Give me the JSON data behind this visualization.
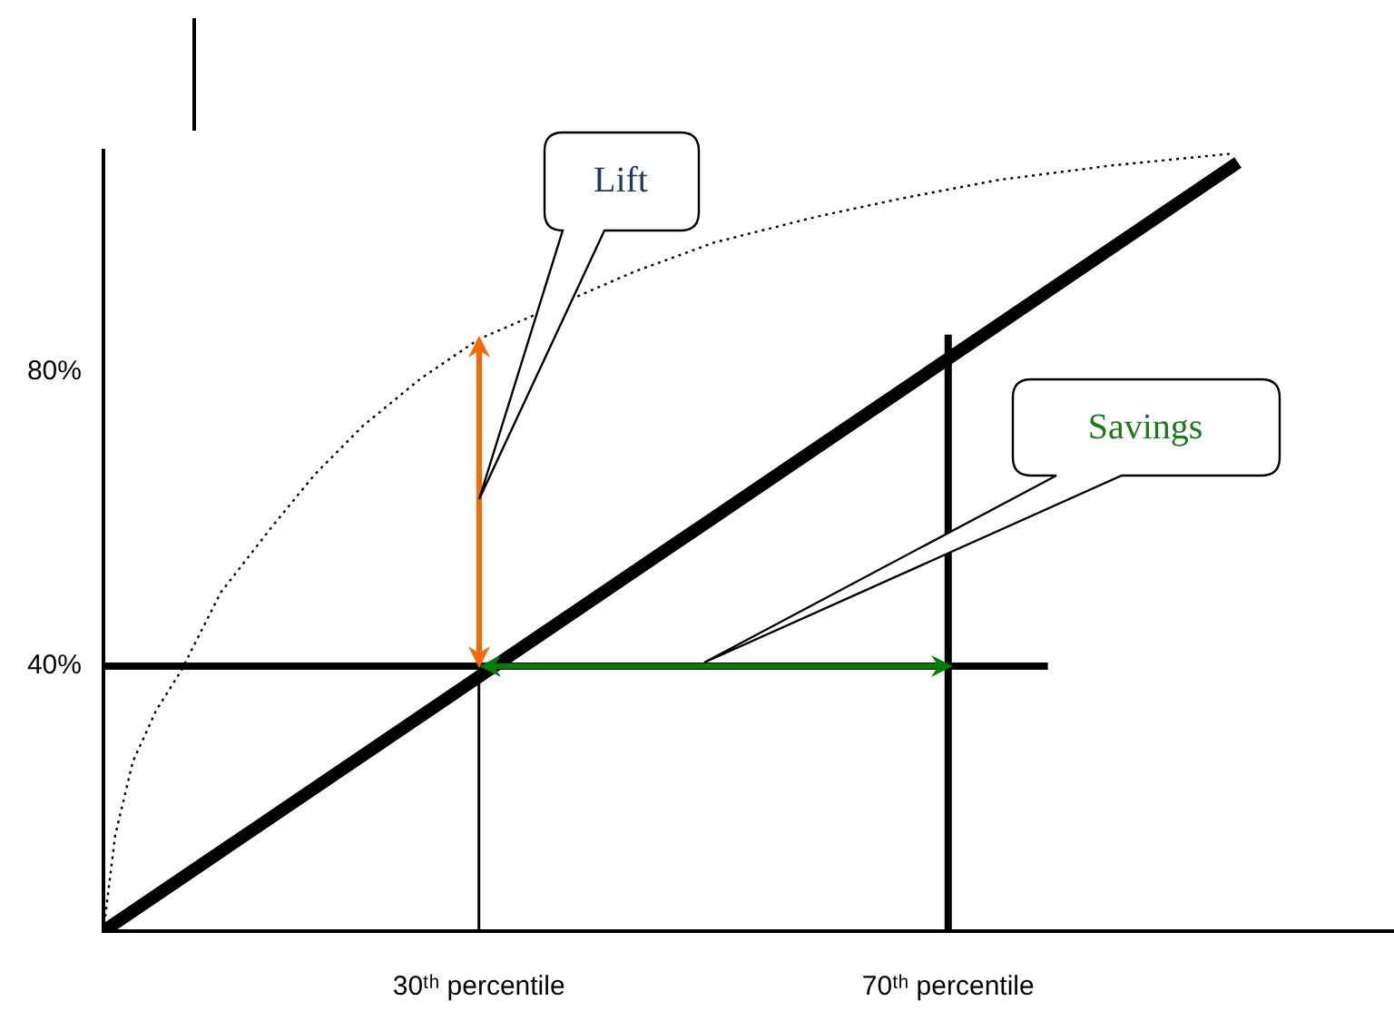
{
  "chart_data": {
    "type": "line",
    "marker": "none",
    "grid": false,
    "xlim": [
      -2,
      108
    ],
    "ylim": [
      4,
      110
    ],
    "xticks": [
      {
        "value": 30,
        "label": "30ᵗʰ percentile"
      },
      {
        "value": 70,
        "label": "70ᵗʰ percentile"
      }
    ],
    "yticks": [
      {
        "value": 40,
        "label": "40%"
      },
      {
        "value": 80,
        "label": "80%"
      }
    ],
    "series": [
      {
        "color": "#000000",
        "x": [
          -2,
          94.7
        ],
        "values": [
          4,
          108.4
        ]
      },
      {
        "color": "#000000",
        "line_style": "dotted",
        "x": [
          -2,
          -1,
          0.5,
          2.5,
          4.6,
          8,
          12.4,
          16,
          20.1,
          25,
          30,
          36,
          43.3,
          50,
          58.7,
          66,
          74.2,
          84,
          94.2
        ],
        "values": [
          4,
          17,
          27,
          34,
          39.3,
          50,
          59,
          66,
          72.6,
          79,
          84.4,
          null,
          93.6,
          97.5,
          101,
          103.5,
          106,
          108,
          109.6
        ]
      },
      {
        "color": "#000000",
        "x": [
          -2,
          78.5
        ],
        "values": [
          40,
          40
        ]
      },
      {
        "color": "#000000",
        "x": [
          30,
          30
        ],
        "values": [
          4,
          40
        ]
      },
      {
        "color": "#000000",
        "x": [
          70,
          70
        ],
        "values": [
          4,
          85
        ]
      }
    ],
    "annotations": [
      "Lift",
      "Savings"
    ]
  }
}
